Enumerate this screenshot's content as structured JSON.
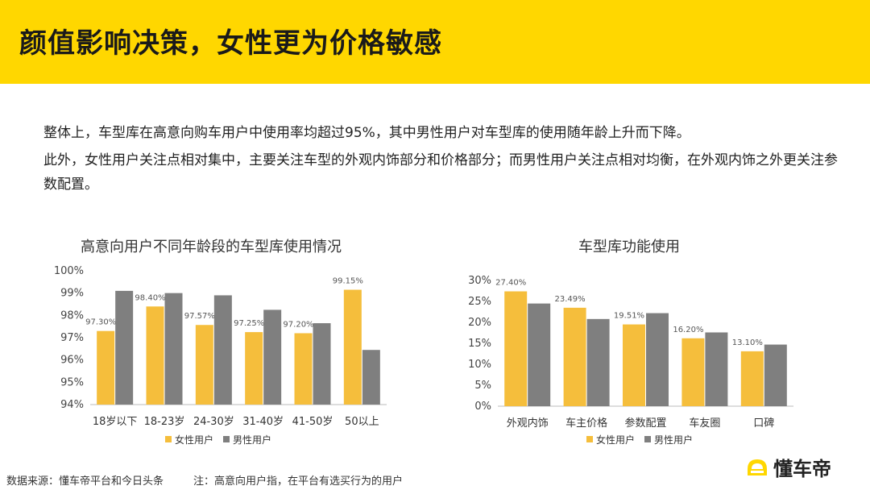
{
  "header": {
    "title": "颜值影响决策，女性更为价格敏感"
  },
  "intro": {
    "line1": "整体上，车型库在高意向购车用户中使用率均超过95%，其中男性用户对车型库的使用随年龄上升而下降。",
    "line2": "此外，女性用户关注点相对集中，主要关注车型的外观内饰部分和价格部分；而男性用户关注点相对均衡，在外观内饰之外更关注参数配置。"
  },
  "colors": {
    "female": "#f5be3c",
    "male": "#7f7f7f",
    "header_bg": "#ffd700"
  },
  "chart_data": [
    {
      "type": "bar",
      "title": "高意向用户不同年龄段的车型库使用情况",
      "categories": [
        "18岁以下",
        "18-23岁",
        "24-30岁",
        "31-40岁",
        "41-50岁",
        "50以上"
      ],
      "series": [
        {
          "name": "女性用户",
          "values": [
            97.3,
            98.4,
            97.57,
            97.25,
            97.2,
            99.15
          ],
          "labels": [
            "97.30%",
            "98.40%",
            "97.57%",
            "97.25%",
            "97.20%",
            "99.15%"
          ]
        },
        {
          "name": "男性用户",
          "values": [
            99.1,
            99.0,
            98.9,
            98.25,
            97.65,
            96.45
          ]
        }
      ],
      "ylim": [
        94,
        100
      ],
      "yticks": [
        94,
        95,
        96,
        97,
        98,
        99,
        100
      ],
      "ytick_labels": [
        "94%",
        "95%",
        "96%",
        "97%",
        "98%",
        "99%",
        "100%"
      ],
      "legend": "bottom",
      "grid": false
    },
    {
      "type": "bar",
      "title": "车型库功能使用",
      "categories": [
        "外观内饰",
        "车主价格",
        "参数配置",
        "车友圈",
        "口碑"
      ],
      "series": [
        {
          "name": "女性用户",
          "values": [
            27.4,
            23.49,
            19.51,
            16.2,
            13.1
          ],
          "labels": [
            "27.40%",
            "23.49%",
            "19.51%",
            "16.20%",
            "13.10%"
          ]
        },
        {
          "name": "男性用户",
          "values": [
            24.5,
            20.8,
            22.2,
            17.6,
            14.7
          ]
        }
      ],
      "ylim": [
        0,
        30
      ],
      "yticks": [
        0,
        5,
        10,
        15,
        20,
        25,
        30
      ],
      "ytick_labels": [
        "0%",
        "5%",
        "10%",
        "15%",
        "20%",
        "25%",
        "30%"
      ],
      "legend": "bottom",
      "grid": false
    }
  ],
  "footer": {
    "source": "数据来源：懂车帝平台和今日头条",
    "note": "注：高意向用户指，在平台有选买行为的用户"
  },
  "brand": {
    "name": "懂车帝",
    "icon": "car-logo-icon"
  }
}
